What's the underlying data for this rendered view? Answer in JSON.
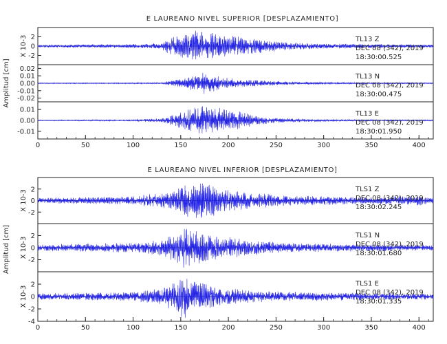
{
  "chart_data": [
    {
      "type": "line",
      "title": "E LAUREANO NIVEL SUPERIOR [DESPLAZAMIENTO]",
      "ylabel": "Amplitud [cm]",
      "xlim": [
        0,
        415
      ],
      "xticks": [
        "0",
        "50",
        "100",
        "150",
        "200",
        "250",
        "300",
        "350",
        "400"
      ],
      "grid": false,
      "series": [
        {
          "name": "TL13 Z",
          "station": "TL13",
          "component": "Z",
          "date": "DEC 08 (342), 2019",
          "time": "18:30:00.525",
          "multiplier": "X 10-3",
          "ylim": [
            -4,
            4
          ],
          "yticks": [
            "2",
            "0",
            "-2"
          ],
          "envelope": [
            [
              0,
              0.3
            ],
            [
              50,
              0.35
            ],
            [
              100,
              0.45
            ],
            [
              130,
              0.6
            ],
            [
              135,
              1.8
            ],
            [
              150,
              2.5
            ],
            [
              165,
              3.8
            ],
            [
              175,
              3.3
            ],
            [
              200,
              2.4
            ],
            [
              230,
              1.6
            ],
            [
              260,
              0.9
            ],
            [
              300,
              0.6
            ],
            [
              350,
              0.45
            ],
            [
              415,
              0.35
            ]
          ]
        },
        {
          "name": "TL13 N",
          "station": "TL13",
          "component": "N",
          "date": "DEC 08 (342), 2019",
          "time": "18:30:00.475",
          "multiplier": "",
          "ylim": [
            -0.025,
            0.025
          ],
          "yticks": [
            "0.02",
            "0.01",
            "0.00",
            "-0.01",
            "-0.02"
          ],
          "envelope": [
            [
              0,
              0.0006
            ],
            [
              100,
              0.0008
            ],
            [
              130,
              0.001
            ],
            [
              140,
              0.004
            ],
            [
              155,
              0.007
            ],
            [
              165,
              0.012
            ],
            [
              175,
              0.015
            ],
            [
              185,
              0.011
            ],
            [
              200,
              0.007
            ],
            [
              230,
              0.004
            ],
            [
              270,
              0.002
            ],
            [
              320,
              0.0012
            ],
            [
              415,
              0.0008
            ]
          ]
        },
        {
          "name": "TL13 E",
          "station": "TL13",
          "component": "E",
          "date": "DEC 08 (342), 2019",
          "time": "18:30:01.950",
          "multiplier": "",
          "ylim": [
            -0.017,
            0.017
          ],
          "yticks": [
            "0.01",
            "0.00",
            "-0.01"
          ],
          "envelope": [
            [
              0,
              0.0004
            ],
            [
              100,
              0.0008
            ],
            [
              130,
              0.002
            ],
            [
              145,
              0.006
            ],
            [
              160,
              0.011
            ],
            [
              170,
              0.014
            ],
            [
              190,
              0.012
            ],
            [
              210,
              0.009
            ],
            [
              230,
              0.004
            ],
            [
              260,
              0.002
            ],
            [
              300,
              0.001
            ],
            [
              415,
              0.0006
            ]
          ]
        }
      ]
    },
    {
      "type": "line",
      "title": "E LAUREANO NIVEL INFERIOR [DESPLAZAMIENTO]",
      "ylabel": "Amplitud [cm]",
      "xlim": [
        0,
        415
      ],
      "xticks": [
        "0",
        "50",
        "100",
        "150",
        "200",
        "250",
        "300",
        "350",
        "400"
      ],
      "grid": false,
      "series": [
        {
          "name": "TLS1 Z",
          "station": "TLS1",
          "component": "Z",
          "date": "DEC 08 (342), 2019",
          "time": "18:30:02.245",
          "multiplier": "X 10-3",
          "ylim": [
            -4,
            4
          ],
          "yticks": [
            "2",
            "0",
            "-2"
          ],
          "envelope": [
            [
              0,
              0.5
            ],
            [
              50,
              0.6
            ],
            [
              100,
              0.8
            ],
            [
              140,
              1.5
            ],
            [
              155,
              2.8
            ],
            [
              165,
              3.5
            ],
            [
              175,
              3.2
            ],
            [
              200,
              2.0
            ],
            [
              230,
              1.4
            ],
            [
              260,
              0.9
            ],
            [
              300,
              0.8
            ],
            [
              350,
              0.6
            ],
            [
              400,
              0.9
            ],
            [
              415,
              0.5
            ]
          ]
        },
        {
          "name": "TLS1 N",
          "station": "TLS1",
          "component": "N",
          "date": "DEC 08 (342), 2019",
          "time": "18:30:01.680",
          "multiplier": "X 10-3",
          "ylim": [
            -4,
            4
          ],
          "yticks": [
            "2",
            "0",
            "-2"
          ],
          "envelope": [
            [
              0,
              0.5
            ],
            [
              50,
              0.7
            ],
            [
              100,
              0.9
            ],
            [
              130,
              1.4
            ],
            [
              145,
              2.6
            ],
            [
              155,
              3.6
            ],
            [
              170,
              2.8
            ],
            [
              200,
              1.8
            ],
            [
              230,
              1.2
            ],
            [
              260,
              0.8
            ],
            [
              300,
              0.7
            ],
            [
              350,
              0.6
            ],
            [
              415,
              0.5
            ]
          ]
        },
        {
          "name": "TLS1 E",
          "station": "TLS1",
          "component": "E",
          "date": "DEC 08 (342), 2019",
          "time": "18:30:01.335",
          "multiplier": "X 10-3",
          "ylim": [
            -4,
            4
          ],
          "yticks": [
            "2",
            "0",
            "-2",
            "-4"
          ],
          "envelope": [
            [
              0,
              0.5
            ],
            [
              50,
              0.6
            ],
            [
              100,
              0.8
            ],
            [
              130,
              1.4
            ],
            [
              145,
              2.8
            ],
            [
              152,
              3.8
            ],
            [
              165,
              2.6
            ],
            [
              190,
              1.6
            ],
            [
              220,
              1.0
            ],
            [
              260,
              0.8
            ],
            [
              300,
              0.7
            ],
            [
              350,
              0.6
            ],
            [
              415,
              0.5
            ]
          ]
        }
      ]
    }
  ],
  "colors": {
    "trace": "#2424e6",
    "axis": "#222222"
  }
}
